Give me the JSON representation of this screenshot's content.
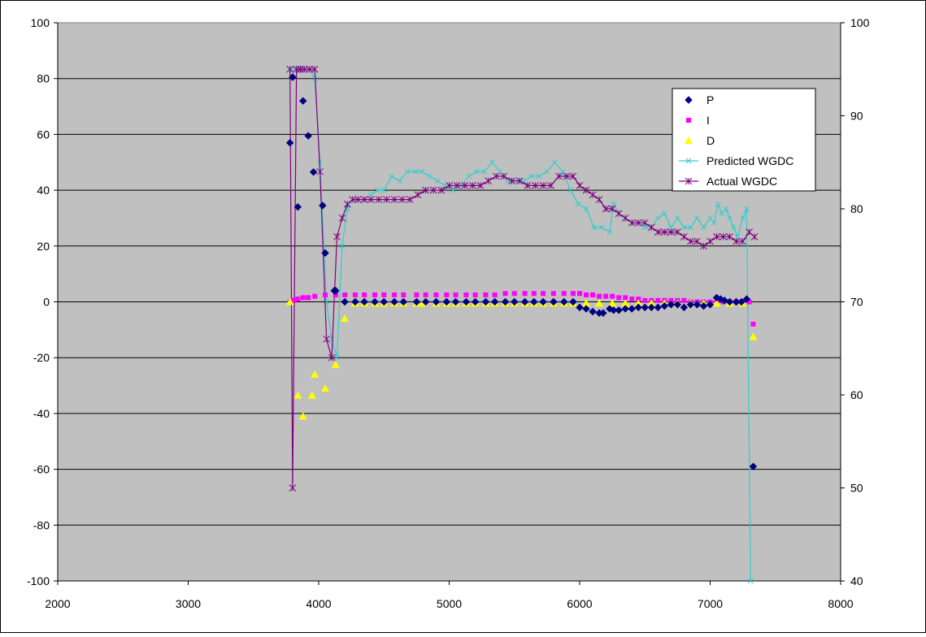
{
  "chart_data": {
    "type": "scatter",
    "title": "",
    "xlabel": "",
    "ylabel": "",
    "y2label": "",
    "xlim": [
      2000,
      8000
    ],
    "ylim": [
      -100,
      100
    ],
    "y2lim": [
      40,
      100
    ],
    "x_ticks": [
      "2000",
      "3000",
      "4000",
      "5000",
      "6000",
      "7000",
      "8000"
    ],
    "y_ticks": [
      "-100",
      "-80",
      "-60",
      "-40",
      "-20",
      "0",
      "20",
      "40",
      "60",
      "80",
      "100"
    ],
    "y2_ticks": [
      "40",
      "50",
      "60",
      "70",
      "80",
      "90",
      "100"
    ],
    "grid": "horizontal",
    "legend_position": "right",
    "colors": {
      "plot_bg": "#c0c0c0",
      "page_bg": "#ffffff",
      "P": "#000080",
      "I": "#ff00ff",
      "D": "#ffff00",
      "predicted": "#33cccc",
      "actual": "#800080"
    },
    "series": [
      {
        "name": "P",
        "axis": "left",
        "marker": "diamond",
        "line": false,
        "x": [
          3780,
          3800,
          3840,
          3880,
          3920,
          3960,
          4030,
          4050,
          4120,
          4130,
          4200,
          4280,
          4350,
          4430,
          4500,
          4580,
          4650,
          4750,
          4820,
          4900,
          4980,
          5050,
          5130,
          5200,
          5280,
          5350,
          5430,
          5500,
          5580,
          5650,
          5720,
          5800,
          5880,
          5950,
          6000,
          6050,
          6100,
          6150,
          6180,
          6230,
          6260,
          6300,
          6350,
          6400,
          6450,
          6500,
          6550,
          6600,
          6650,
          6700,
          6750,
          6800,
          6850,
          6900,
          6950,
          7000,
          7050,
          7080,
          7110,
          7150,
          7200,
          7240,
          7280,
          7330
        ],
        "y": [
          57,
          80.5,
          34,
          72,
          59.5,
          46.5,
          34.5,
          17.5,
          4,
          4,
          0,
          0,
          0,
          0,
          0,
          0,
          0,
          0,
          0,
          0,
          0,
          0,
          0,
          0,
          0,
          0,
          0,
          0,
          0,
          0,
          0,
          0,
          0,
          0,
          -2,
          -2.5,
          -3.5,
          -4,
          -4,
          -2.5,
          -3,
          -3,
          -2.5,
          -2.5,
          -2,
          -2,
          -2,
          -2,
          -1.5,
          -1,
          -1,
          -2,
          -1,
          -1,
          -1.5,
          -1,
          1.5,
          1,
          0.5,
          0,
          0,
          0,
          1,
          -59
        ]
      },
      {
        "name": "I",
        "axis": "left",
        "marker": "square",
        "line": false,
        "x": [
          3780,
          3810,
          3840,
          3880,
          3920,
          3970,
          4050,
          4130,
          4200,
          4280,
          4350,
          4430,
          4500,
          4580,
          4650,
          4750,
          4820,
          4900,
          4980,
          5050,
          5130,
          5200,
          5280,
          5350,
          5430,
          5500,
          5580,
          5650,
          5720,
          5800,
          5880,
          5950,
          6000,
          6050,
          6100,
          6150,
          6200,
          6250,
          6300,
          6350,
          6400,
          6450,
          6500,
          6550,
          6600,
          6650,
          6700,
          6750,
          6800,
          6850,
          6900,
          6950,
          7000,
          7050,
          7100,
          7150,
          7200,
          7250,
          7300,
          7330
        ],
        "y": [
          0,
          0.5,
          1,
          1.5,
          1.5,
          2,
          2.5,
          2.5,
          2.5,
          2.5,
          2.5,
          2.5,
          2.5,
          2.5,
          2.5,
          2.5,
          2.5,
          2.5,
          2.5,
          2.5,
          2.5,
          2.5,
          2.5,
          2.5,
          3,
          3,
          3,
          3,
          3,
          3,
          3,
          3,
          3,
          2.5,
          2.5,
          2,
          2,
          2,
          1.5,
          1.5,
          1,
          1,
          0.5,
          0.5,
          0.5,
          0.5,
          0.5,
          0.5,
          0.5,
          0,
          0,
          0,
          0,
          0,
          0,
          0,
          0,
          0,
          0,
          -8
        ]
      },
      {
        "name": "D",
        "axis": "left",
        "marker": "triangle",
        "line": false,
        "x": [
          3780,
          3840,
          3880,
          3950,
          3970,
          4050,
          4130,
          4200,
          4280,
          4350,
          4430,
          4500,
          4580,
          4650,
          4750,
          4800,
          4900,
          4980,
          5050,
          5130,
          5200,
          5280,
          5350,
          5430,
          5500,
          5580,
          5650,
          5720,
          5800,
          5880,
          5950,
          6050,
          6150,
          6250,
          6350,
          6450,
          6550,
          6650,
          6750,
          6850,
          6950,
          7050,
          7150,
          7250,
          7330
        ],
        "y": [
          0,
          -33.5,
          -41,
          -33.5,
          -26,
          -31,
          -22.5,
          -6,
          -0.5,
          -0.5,
          -0.5,
          -0.5,
          -0.5,
          -0.5,
          -0.5,
          -0.5,
          -0.5,
          -0.5,
          -0.5,
          -0.5,
          -0.5,
          -0.5,
          -0.5,
          -0.5,
          -0.5,
          -0.5,
          -0.5,
          -0.5,
          -0.5,
          -0.5,
          -0.5,
          -0.5,
          -0.5,
          -0.5,
          -0.5,
          -0.5,
          -0.5,
          -0.5,
          -0.5,
          -0.5,
          -0.5,
          -0.5,
          -0.5,
          -0.5,
          -12.5
        ]
      },
      {
        "name": "Predicted WGDC",
        "axis": "right",
        "marker": "x",
        "line": true,
        "x": [
          3780,
          3810,
          3850,
          3890,
          3930,
          3970,
          4010,
          4060,
          4100,
          4140,
          4180,
          4220,
          4260,
          4300,
          4350,
          4400,
          4450,
          4500,
          4560,
          4620,
          4680,
          4740,
          4790,
          4850,
          4910,
          4970,
          5030,
          5090,
          5150,
          5210,
          5270,
          5330,
          5390,
          5450,
          5510,
          5570,
          5630,
          5690,
          5750,
          5810,
          5870,
          5930,
          5990,
          6050,
          6110,
          6170,
          6230,
          6260,
          6300,
          6350,
          6400,
          6450,
          6500,
          6550,
          6600,
          6650,
          6700,
          6750,
          6800,
          6850,
          6900,
          6950,
          7000,
          7030,
          7060,
          7090,
          7120,
          7150,
          7180,
          7210,
          7250,
          7280,
          7310
        ],
        "y": [
          95,
          95,
          95,
          95,
          95,
          94,
          85,
          70,
          66,
          64,
          76,
          80,
          81,
          81,
          81,
          81.5,
          82,
          82,
          83.5,
          83,
          84,
          84,
          84,
          83.5,
          83,
          82.5,
          82,
          82.5,
          83.5,
          84,
          84,
          85,
          84,
          83,
          83,
          83,
          83.5,
          83.5,
          84,
          85,
          84,
          82,
          80.5,
          80,
          78,
          78,
          77.5,
          80.5,
          79.5,
          79,
          78.5,
          78.5,
          78,
          78,
          79,
          79.5,
          78,
          79,
          78,
          78,
          79,
          78,
          79,
          78.5,
          80.5,
          79.5,
          80,
          79,
          78,
          77,
          79,
          80,
          40
        ]
      },
      {
        "name": "Actual WGDC",
        "axis": "right",
        "marker": "star",
        "line": true,
        "x": [
          3780,
          3800,
          3830,
          3860,
          3890,
          3930,
          3970,
          4010,
          4060,
          4100,
          4140,
          4180,
          4220,
          4260,
          4300,
          4350,
          4400,
          4460,
          4520,
          4580,
          4640,
          4700,
          4760,
          4820,
          4880,
          4940,
          5000,
          5060,
          5120,
          5180,
          5240,
          5300,
          5360,
          5420,
          5480,
          5540,
          5600,
          5660,
          5720,
          5780,
          5840,
          5900,
          5950,
          6000,
          6050,
          6100,
          6150,
          6200,
          6250,
          6300,
          6350,
          6400,
          6450,
          6500,
          6550,
          6600,
          6650,
          6700,
          6750,
          6800,
          6850,
          6900,
          6950,
          7000,
          7050,
          7100,
          7150,
          7200,
          7250,
          7300,
          7340
        ],
        "y": [
          95,
          50,
          95,
          95,
          95,
          95,
          95,
          84,
          66,
          64,
          77,
          79,
          80.5,
          81,
          81,
          81,
          81,
          81,
          81,
          81,
          81,
          81,
          81.5,
          82,
          82,
          82,
          82.5,
          82.5,
          82.5,
          82.5,
          82.5,
          83,
          83.5,
          83.5,
          83,
          83,
          82.5,
          82.5,
          82.5,
          82.5,
          83.5,
          83.5,
          83.5,
          82.5,
          82,
          81.5,
          81,
          80,
          80,
          79.5,
          79,
          78.5,
          78.5,
          78.5,
          78,
          77.5,
          77.5,
          77.5,
          77.5,
          77,
          76.5,
          76.5,
          76,
          76.5,
          77,
          77,
          77,
          76.5,
          76.5,
          77.5,
          77
        ]
      }
    ]
  }
}
